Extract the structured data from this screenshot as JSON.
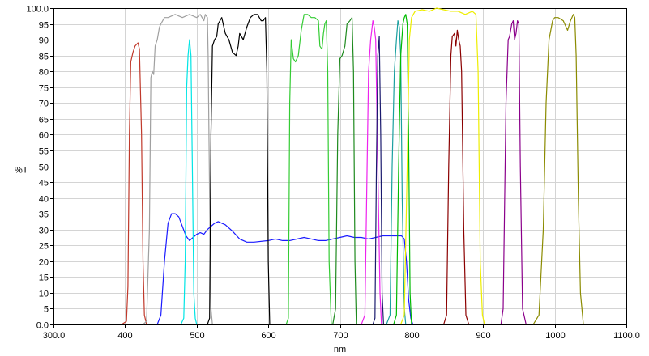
{
  "chart_data": {
    "type": "line",
    "title": "",
    "xlabel": "nm",
    "ylabel": "%T",
    "xlim": [
      300,
      1100
    ],
    "ylim": [
      0,
      100
    ],
    "grid": true,
    "legend": "none",
    "x_ticks": [
      "300.0",
      "400",
      "500",
      "600",
      "700",
      "800",
      "900",
      "1000",
      "1100.0"
    ],
    "y_ticks": [
      "0.0",
      "5",
      "10",
      "15",
      "20",
      "25",
      "30",
      "35",
      "40",
      "45",
      "50",
      "55",
      "60",
      "65",
      "70",
      "75",
      "80",
      "85",
      "90",
      "95",
      "100.0"
    ],
    "series": [
      {
        "color": "#c0392b",
        "points": [
          [
            395,
            0
          ],
          [
            402,
            1
          ],
          [
            404,
            12
          ],
          [
            406,
            60
          ],
          [
            408,
            83
          ],
          [
            411,
            86
          ],
          [
            414,
            88
          ],
          [
            418,
            89
          ],
          [
            420,
            87
          ],
          [
            423,
            60
          ],
          [
            425,
            20
          ],
          [
            427,
            3
          ],
          [
            430,
            0
          ]
        ]
      },
      {
        "color": "#a0a0a0",
        "points": [
          [
            425,
            0
          ],
          [
            430,
            1
          ],
          [
            434,
            30
          ],
          [
            436,
            78
          ],
          [
            438,
            80
          ],
          [
            440,
            79
          ],
          [
            442,
            88
          ],
          [
            445,
            90
          ],
          [
            448,
            94
          ],
          [
            450,
            95
          ],
          [
            455,
            97
          ],
          [
            460,
            97
          ],
          [
            470,
            98
          ],
          [
            480,
            97
          ],
          [
            490,
            98
          ],
          [
            500,
            97
          ],
          [
            505,
            98
          ],
          [
            510,
            96
          ],
          [
            512,
            98
          ],
          [
            515,
            97
          ],
          [
            516,
            85
          ],
          [
            518,
            40
          ],
          [
            520,
            5
          ],
          [
            522,
            0
          ]
        ]
      },
      {
        "color": "#1a1aff",
        "points": [
          [
            445,
            0
          ],
          [
            450,
            3
          ],
          [
            455,
            20
          ],
          [
            460,
            32
          ],
          [
            465,
            35
          ],
          [
            470,
            35
          ],
          [
            475,
            34
          ],
          [
            480,
            31
          ],
          [
            485,
            28
          ],
          [
            490,
            26.5
          ],
          [
            495,
            27.5
          ],
          [
            500,
            28.5
          ],
          [
            505,
            29
          ],
          [
            510,
            28.5
          ],
          [
            515,
            30
          ],
          [
            520,
            31
          ],
          [
            525,
            32
          ],
          [
            530,
            32.5
          ],
          [
            540,
            31.5
          ],
          [
            550,
            29.5
          ],
          [
            560,
            27
          ],
          [
            570,
            26
          ],
          [
            580,
            26
          ],
          [
            600,
            26.5
          ],
          [
            610,
            27
          ],
          [
            620,
            26.5
          ],
          [
            630,
            26.5
          ],
          [
            650,
            27.5
          ],
          [
            660,
            27
          ],
          [
            670,
            26.5
          ],
          [
            680,
            26.5
          ],
          [
            690,
            27
          ],
          [
            700,
            27.5
          ],
          [
            710,
            28
          ],
          [
            720,
            27.5
          ],
          [
            730,
            27.5
          ],
          [
            740,
            27
          ],
          [
            750,
            27.5
          ],
          [
            760,
            28
          ],
          [
            770,
            28
          ],
          [
            780,
            28
          ],
          [
            786,
            28
          ],
          [
            790,
            27
          ],
          [
            793,
            20
          ],
          [
            796,
            8
          ],
          [
            799,
            2
          ],
          [
            802,
            0
          ]
        ]
      },
      {
        "color": "#00e5e5",
        "points": [
          [
            478,
            0
          ],
          [
            482,
            2
          ],
          [
            484,
            20
          ],
          [
            486,
            75
          ],
          [
            488,
            85
          ],
          [
            490,
            90
          ],
          [
            492,
            85
          ],
          [
            494,
            50
          ],
          [
            496,
            10
          ],
          [
            498,
            2
          ],
          [
            500,
            0
          ]
        ]
      },
      {
        "color": "#000000",
        "points": [
          [
            515,
            0
          ],
          [
            518,
            2
          ],
          [
            520,
            60
          ],
          [
            522,
            88
          ],
          [
            525,
            90
          ],
          [
            528,
            91
          ],
          [
            530,
            95
          ],
          [
            535,
            97
          ],
          [
            540,
            92
          ],
          [
            545,
            90
          ],
          [
            550,
            86
          ],
          [
            555,
            85
          ],
          [
            558,
            88
          ],
          [
            560,
            92
          ],
          [
            565,
            90
          ],
          [
            570,
            94
          ],
          [
            575,
            97
          ],
          [
            580,
            98
          ],
          [
            585,
            98
          ],
          [
            590,
            96
          ],
          [
            593,
            96
          ],
          [
            596,
            97
          ],
          [
            598,
            80
          ],
          [
            600,
            20
          ],
          [
            602,
            0
          ]
        ]
      },
      {
        "color": "#33cc33",
        "points": [
          [
            625,
            0
          ],
          [
            628,
            2
          ],
          [
            630,
            70
          ],
          [
            632,
            90
          ],
          [
            635,
            84
          ],
          [
            638,
            83
          ],
          [
            642,
            85
          ],
          [
            646,
            93
          ],
          [
            650,
            98
          ],
          [
            655,
            98
          ],
          [
            660,
            97
          ],
          [
            665,
            97
          ],
          [
            670,
            96
          ],
          [
            672,
            88
          ],
          [
            675,
            87
          ],
          [
            677,
            92
          ],
          [
            679,
            95
          ],
          [
            681,
            96
          ],
          [
            683,
            80
          ],
          [
            685,
            20
          ],
          [
            688,
            0
          ]
        ]
      },
      {
        "color": "#1e8a1e",
        "points": [
          [
            690,
            0
          ],
          [
            694,
            5
          ],
          [
            697,
            60
          ],
          [
            700,
            84
          ],
          [
            703,
            85
          ],
          [
            707,
            88
          ],
          [
            710,
            95
          ],
          [
            714,
            96
          ],
          [
            717,
            97
          ],
          [
            719,
            80
          ],
          [
            721,
            20
          ],
          [
            723,
            0
          ]
        ]
      },
      {
        "color": "#ee22ee",
        "points": [
          [
            730,
            0
          ],
          [
            735,
            3
          ],
          [
            738,
            50
          ],
          [
            740,
            80
          ],
          [
            743,
            90
          ],
          [
            746,
            96
          ],
          [
            748,
            94
          ],
          [
            750,
            90
          ],
          [
            753,
            50
          ],
          [
            756,
            10
          ],
          [
            758,
            0
          ]
        ]
      },
      {
        "color": "#1a1a6e",
        "points": [
          [
            746,
            0
          ],
          [
            749,
            2
          ],
          [
            751,
            50
          ],
          [
            753,
            85
          ],
          [
            755,
            91
          ],
          [
            757,
            60
          ],
          [
            759,
            10
          ],
          [
            761,
            0
          ]
        ]
      },
      {
        "color": "#1aa0a0",
        "points": [
          [
            765,
            0
          ],
          [
            770,
            3
          ],
          [
            773,
            50
          ],
          [
            776,
            80
          ],
          [
            779,
            90
          ],
          [
            781,
            96
          ],
          [
            783,
            94
          ],
          [
            785,
            85
          ],
          [
            787,
            40
          ],
          [
            790,
            5
          ],
          [
            792,
            0
          ]
        ]
      },
      {
        "color": "#00bb00",
        "points": [
          [
            775,
            0
          ],
          [
            779,
            3
          ],
          [
            782,
            50
          ],
          [
            785,
            85
          ],
          [
            788,
            95
          ],
          [
            790,
            97
          ],
          [
            792,
            98
          ],
          [
            794,
            95
          ],
          [
            796,
            60
          ],
          [
            798,
            10
          ],
          [
            800,
            0
          ]
        ]
      },
      {
        "color": "#eeee00",
        "points": [
          [
            785,
            0
          ],
          [
            790,
            3
          ],
          [
            794,
            50
          ],
          [
            797,
            90
          ],
          [
            800,
            97
          ],
          [
            805,
            99
          ],
          [
            815,
            99.5
          ],
          [
            825,
            99
          ],
          [
            835,
            100
          ],
          [
            845,
            99.5
          ],
          [
            855,
            99
          ],
          [
            865,
            99
          ],
          [
            875,
            98
          ],
          [
            885,
            99
          ],
          [
            890,
            98
          ],
          [
            893,
            80
          ],
          [
            896,
            20
          ],
          [
            899,
            3
          ],
          [
            902,
            0
          ]
        ]
      },
      {
        "color": "#8b0000",
        "points": [
          [
            845,
            0
          ],
          [
            849,
            3
          ],
          [
            852,
            50
          ],
          [
            855,
            85
          ],
          [
            857,
            91
          ],
          [
            860,
            92
          ],
          [
            862,
            88
          ],
          [
            864,
            93
          ],
          [
            866,
            90
          ],
          [
            868,
            88
          ],
          [
            870,
            80
          ],
          [
            873,
            30
          ],
          [
            876,
            3
          ],
          [
            880,
            0
          ]
        ]
      },
      {
        "color": "#8b008b",
        "points": [
          [
            925,
            0
          ],
          [
            928,
            5
          ],
          [
            932,
            70
          ],
          [
            935,
            90
          ],
          [
            937,
            91
          ],
          [
            940,
            95
          ],
          [
            942,
            96
          ],
          [
            944,
            90
          ],
          [
            946,
            92
          ],
          [
            948,
            96
          ],
          [
            950,
            95
          ],
          [
            952,
            50
          ],
          [
            955,
            5
          ],
          [
            960,
            0
          ]
        ]
      },
      {
        "color": "#8b8b00",
        "points": [
          [
            970,
            0
          ],
          [
            978,
            3
          ],
          [
            984,
            30
          ],
          [
            988,
            70
          ],
          [
            992,
            90
          ],
          [
            997,
            96
          ],
          [
            1000,
            97
          ],
          [
            1005,
            97
          ],
          [
            1012,
            96
          ],
          [
            1018,
            93
          ],
          [
            1022,
            96
          ],
          [
            1026,
            98
          ],
          [
            1028,
            97
          ],
          [
            1030,
            85
          ],
          [
            1033,
            40
          ],
          [
            1036,
            10
          ],
          [
            1040,
            0
          ]
        ]
      }
    ]
  }
}
